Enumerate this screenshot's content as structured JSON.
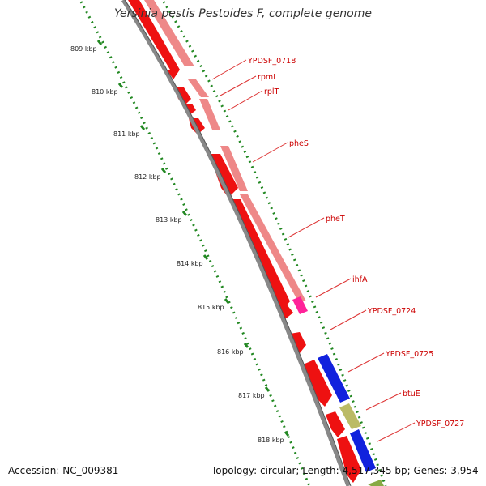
{
  "title": "Yersinia pestis Pestoides F, complete genome",
  "accession": "Accession: NC_009381",
  "summary": "Topology: circular; Length: 4,517,345 bp; Genes: 3,954",
  "ticks": [
    {
      "label": "809 kbp"
    },
    {
      "label": "810 kbp"
    },
    {
      "label": "811 kbp"
    },
    {
      "label": "812 kbp"
    },
    {
      "label": "813 kbp"
    },
    {
      "label": "814 kbp"
    },
    {
      "label": "815 kbp"
    },
    {
      "label": "816 kbp"
    },
    {
      "label": "817 kbp"
    },
    {
      "label": "818 kbp"
    }
  ],
  "genes": [
    {
      "name": "YPDSF_0718"
    },
    {
      "name": "rpmI"
    },
    {
      "name": "rplT"
    },
    {
      "name": "pheS"
    },
    {
      "name": "pheT"
    },
    {
      "name": "ihfA"
    },
    {
      "name": "YPDSF_0724"
    },
    {
      "name": "YPDSF_0725"
    },
    {
      "name": "btuE"
    },
    {
      "name": "YPDSF_0727"
    }
  ],
  "colors": {
    "cds": "#ee1111",
    "gene": "#ee8888",
    "ihf": "#ff2299",
    "blue": "#1122dd",
    "olive": "#bbbb66",
    "green": "#88aa44",
    "backbone": "#888888",
    "tick": "#228822",
    "leader": "#dd3333"
  }
}
